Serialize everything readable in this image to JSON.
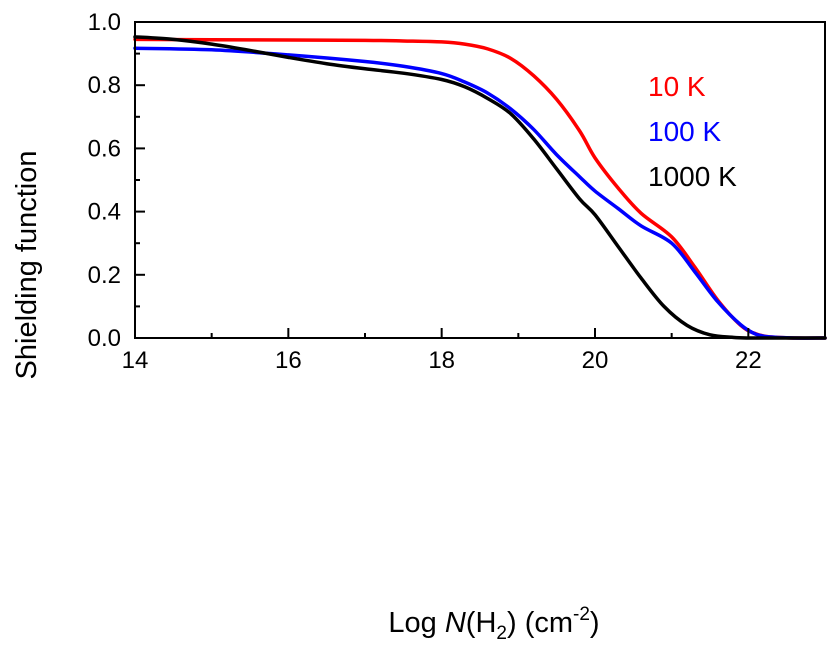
{
  "chart_data": {
    "type": "line",
    "title": "",
    "xlabel": {
      "prefix": "Log ",
      "italic": "N",
      "mid": "(H",
      "sub": "2",
      "after": ") (cm",
      "sup": "-2",
      "end": ")"
    },
    "ylabel": "Shielding function",
    "xlim": [
      14,
      23
    ],
    "ylim": [
      0.0,
      1.0
    ],
    "xticks": [
      14,
      16,
      18,
      20,
      22
    ],
    "xtick_labels": [
      "14",
      "16",
      "18",
      "20",
      "22"
    ],
    "yticks": [
      0.0,
      0.2,
      0.4,
      0.6,
      0.8,
      1.0
    ],
    "ytick_labels": [
      "0.0",
      "0.2",
      "0.4",
      "0.6",
      "0.8",
      "1.0"
    ],
    "grid": false,
    "legend_position": "top-right",
    "series": [
      {
        "name": "10 K",
        "color": "#ff0000",
        "x": [
          14,
          15,
          16,
          17,
          17.5,
          18,
          18.3,
          18.6,
          18.9,
          19.2,
          19.5,
          19.8,
          20.0,
          20.3,
          20.6,
          21.0,
          21.3,
          21.6,
          21.9,
          22.1,
          22.3,
          22.6,
          23.0
        ],
        "y": [
          0.945,
          0.944,
          0.943,
          0.942,
          0.94,
          0.937,
          0.93,
          0.915,
          0.885,
          0.83,
          0.755,
          0.655,
          0.57,
          0.475,
          0.395,
          0.32,
          0.225,
          0.12,
          0.04,
          0.013,
          0.003,
          0.0,
          0.0
        ]
      },
      {
        "name": "100 K",
        "color": "#0000ff",
        "x": [
          14,
          15,
          16,
          17,
          17.5,
          18,
          18.3,
          18.6,
          18.9,
          19.2,
          19.5,
          19.8,
          20.0,
          20.3,
          20.6,
          21.0,
          21.3,
          21.6,
          21.9,
          22.1,
          22.3,
          22.6,
          23.0
        ],
        "y": [
          0.917,
          0.912,
          0.896,
          0.875,
          0.86,
          0.837,
          0.81,
          0.775,
          0.725,
          0.66,
          0.58,
          0.51,
          0.465,
          0.41,
          0.355,
          0.3,
          0.21,
          0.115,
          0.042,
          0.012,
          0.003,
          0.0,
          0.0
        ]
      },
      {
        "name": "1000 K",
        "color": "#000000",
        "x": [
          14,
          14.5,
          15,
          15.5,
          16,
          16.5,
          17,
          17.5,
          18,
          18.3,
          18.6,
          18.9,
          19.2,
          19.5,
          19.8,
          20.0,
          20.3,
          20.6,
          20.9,
          21.2,
          21.5,
          21.8,
          22.0,
          22.3,
          23.0
        ],
        "y": [
          0.953,
          0.945,
          0.93,
          0.91,
          0.888,
          0.868,
          0.852,
          0.838,
          0.818,
          0.795,
          0.758,
          0.71,
          0.63,
          0.535,
          0.44,
          0.39,
          0.29,
          0.19,
          0.1,
          0.04,
          0.01,
          0.002,
          0.0,
          0.0,
          0.0
        ]
      }
    ]
  }
}
